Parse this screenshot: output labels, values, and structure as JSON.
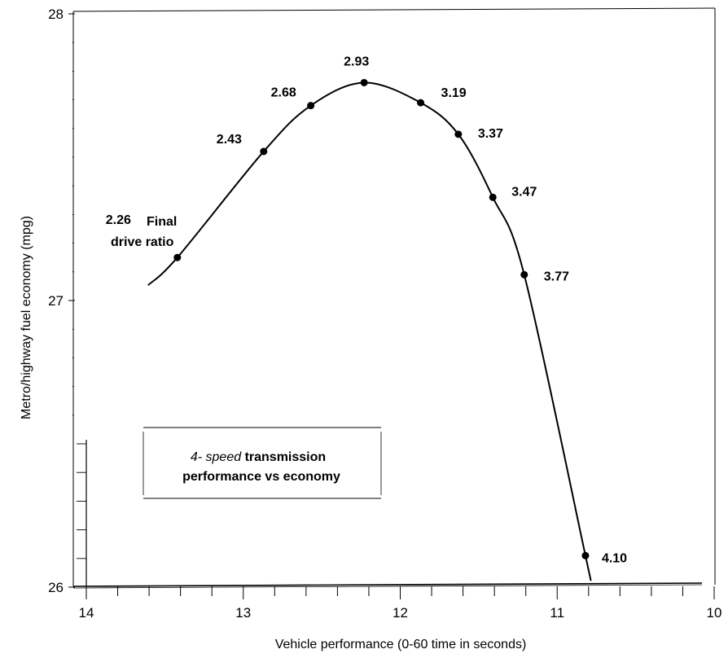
{
  "chart_data": {
    "type": "line",
    "xlabel": "Vehicle performance (0-60 time in seconds)",
    "ylabel": "Metro/highway fuel economy (mpg)",
    "xlim": [
      14,
      10
    ],
    "ylim": [
      26,
      28
    ],
    "x_ticks": [
      "14",
      "13",
      "12",
      "11",
      "10"
    ],
    "y_ticks": [
      "26",
      "27",
      "28"
    ],
    "series": [
      {
        "points": [
          {
            "x": 13.42,
            "y": 27.15,
            "label": "2.26"
          },
          {
            "x": 12.87,
            "y": 27.52,
            "label": "2.43"
          },
          {
            "x": 12.57,
            "y": 27.68,
            "label": "2.68"
          },
          {
            "x": 12.23,
            "y": 27.76,
            "label": "2.93"
          },
          {
            "x": 11.87,
            "y": 27.69,
            "label": "3.19"
          },
          {
            "x": 11.63,
            "y": 27.58,
            "label": "3.37"
          },
          {
            "x": 11.41,
            "y": 27.36,
            "label": "3.47"
          },
          {
            "x": 11.21,
            "y": 27.09,
            "label": "3.77"
          },
          {
            "x": 10.82,
            "y": 26.11,
            "label": "4.10"
          }
        ]
      }
    ],
    "annotations": {
      "first_point_suffix_line1": "Final",
      "first_point_suffix_line2": "drive ratio"
    },
    "legend_box": {
      "line1_italic": "4- speed",
      "line1_bold": "transmission",
      "line2": "performance vs economy"
    }
  }
}
